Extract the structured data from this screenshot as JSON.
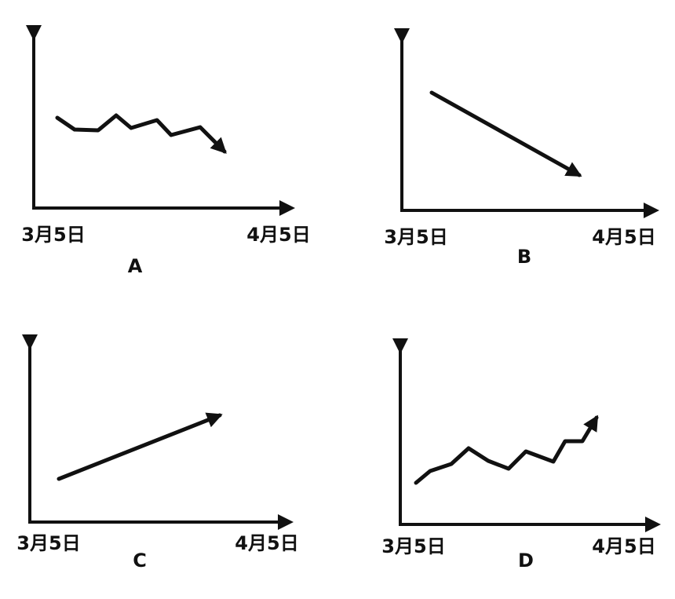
{
  "panels": [
    {
      "start": "3月5日",
      "end": "4月5日",
      "label": "A"
    },
    {
      "start": "3月5日",
      "end": "4月5日",
      "label": "B"
    },
    {
      "start": "3月5日",
      "end": "4月5日",
      "label": "C"
    },
    {
      "start": "3月5日",
      "end": "4月5日",
      "label": "D"
    }
  ]
}
